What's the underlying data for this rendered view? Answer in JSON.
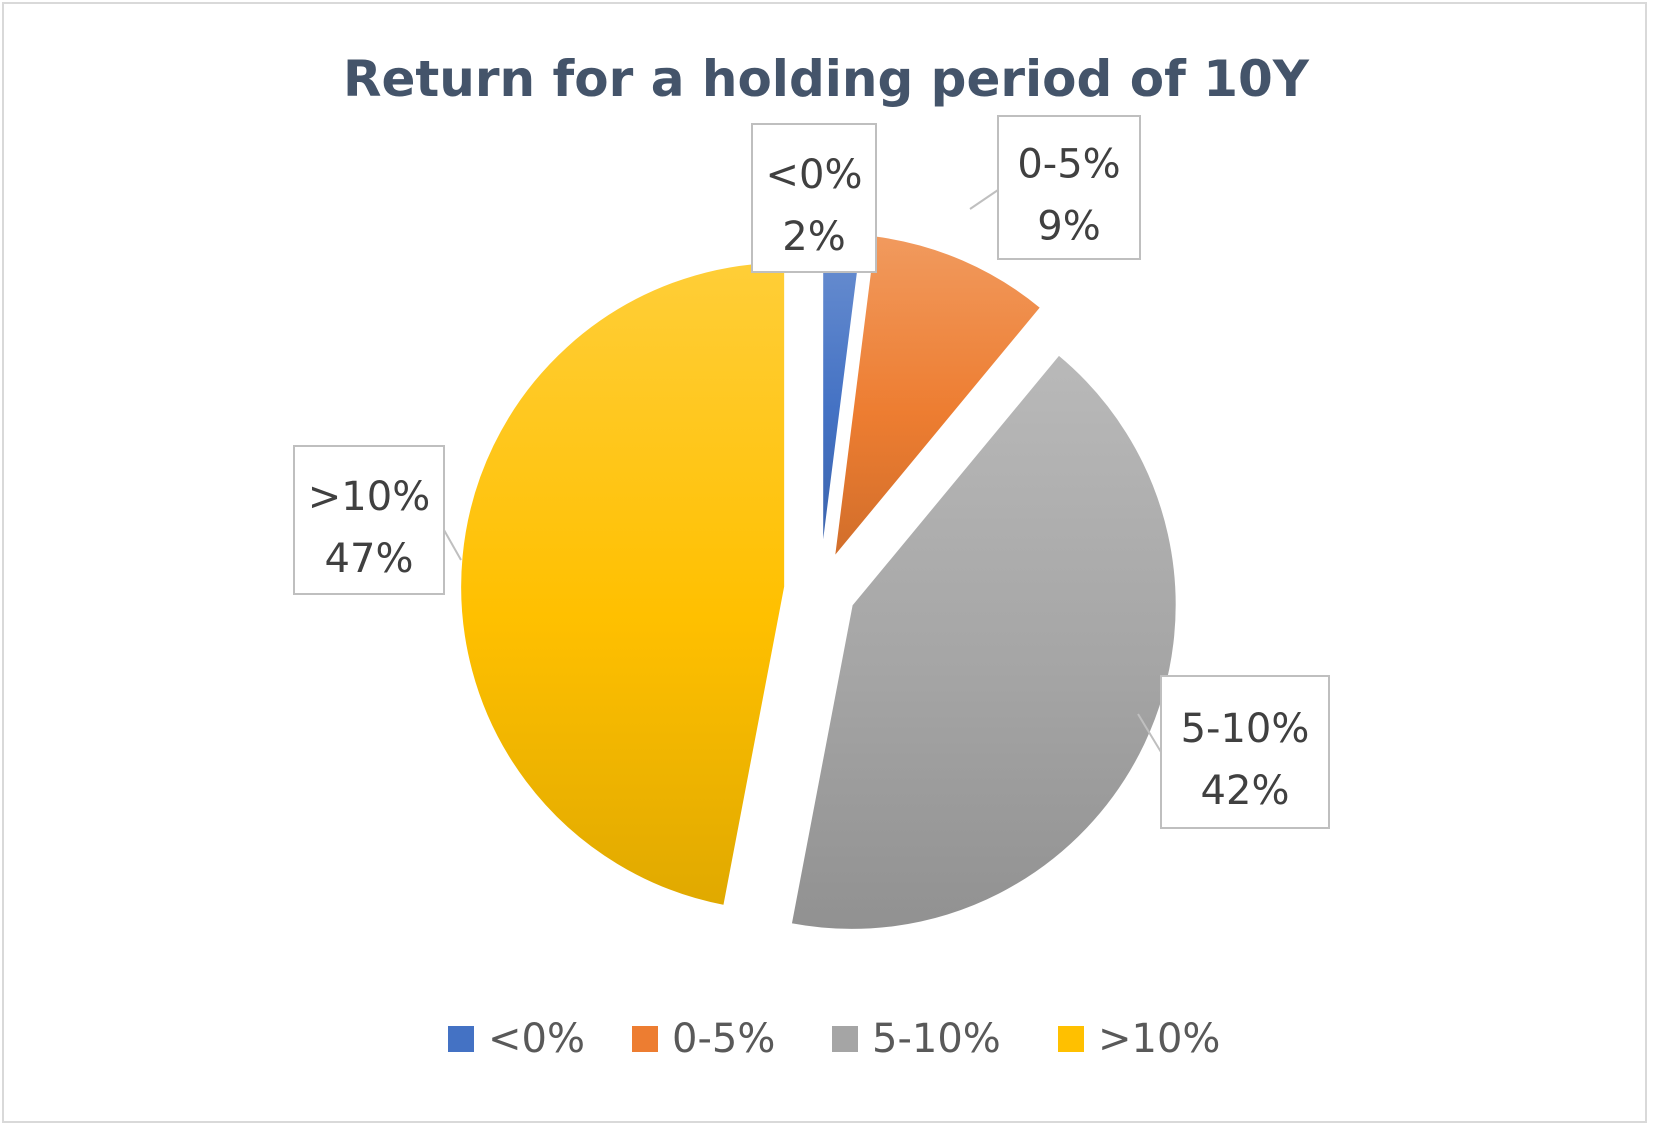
{
  "chart_data": {
    "type": "pie",
    "title": "Return for a holding period of 10Y",
    "categories": [
      "<0%",
      "0-5%",
      "5-10%",
      ">10%"
    ],
    "values": [
      2,
      9,
      42,
      47
    ],
    "value_labels": [
      "2%",
      "9%",
      "42%",
      "47%"
    ],
    "colors": [
      "#4472c4",
      "#ed7d31",
      "#a5a5a5",
      "#ffc000"
    ],
    "legend_position": "bottom",
    "exploded": true
  }
}
